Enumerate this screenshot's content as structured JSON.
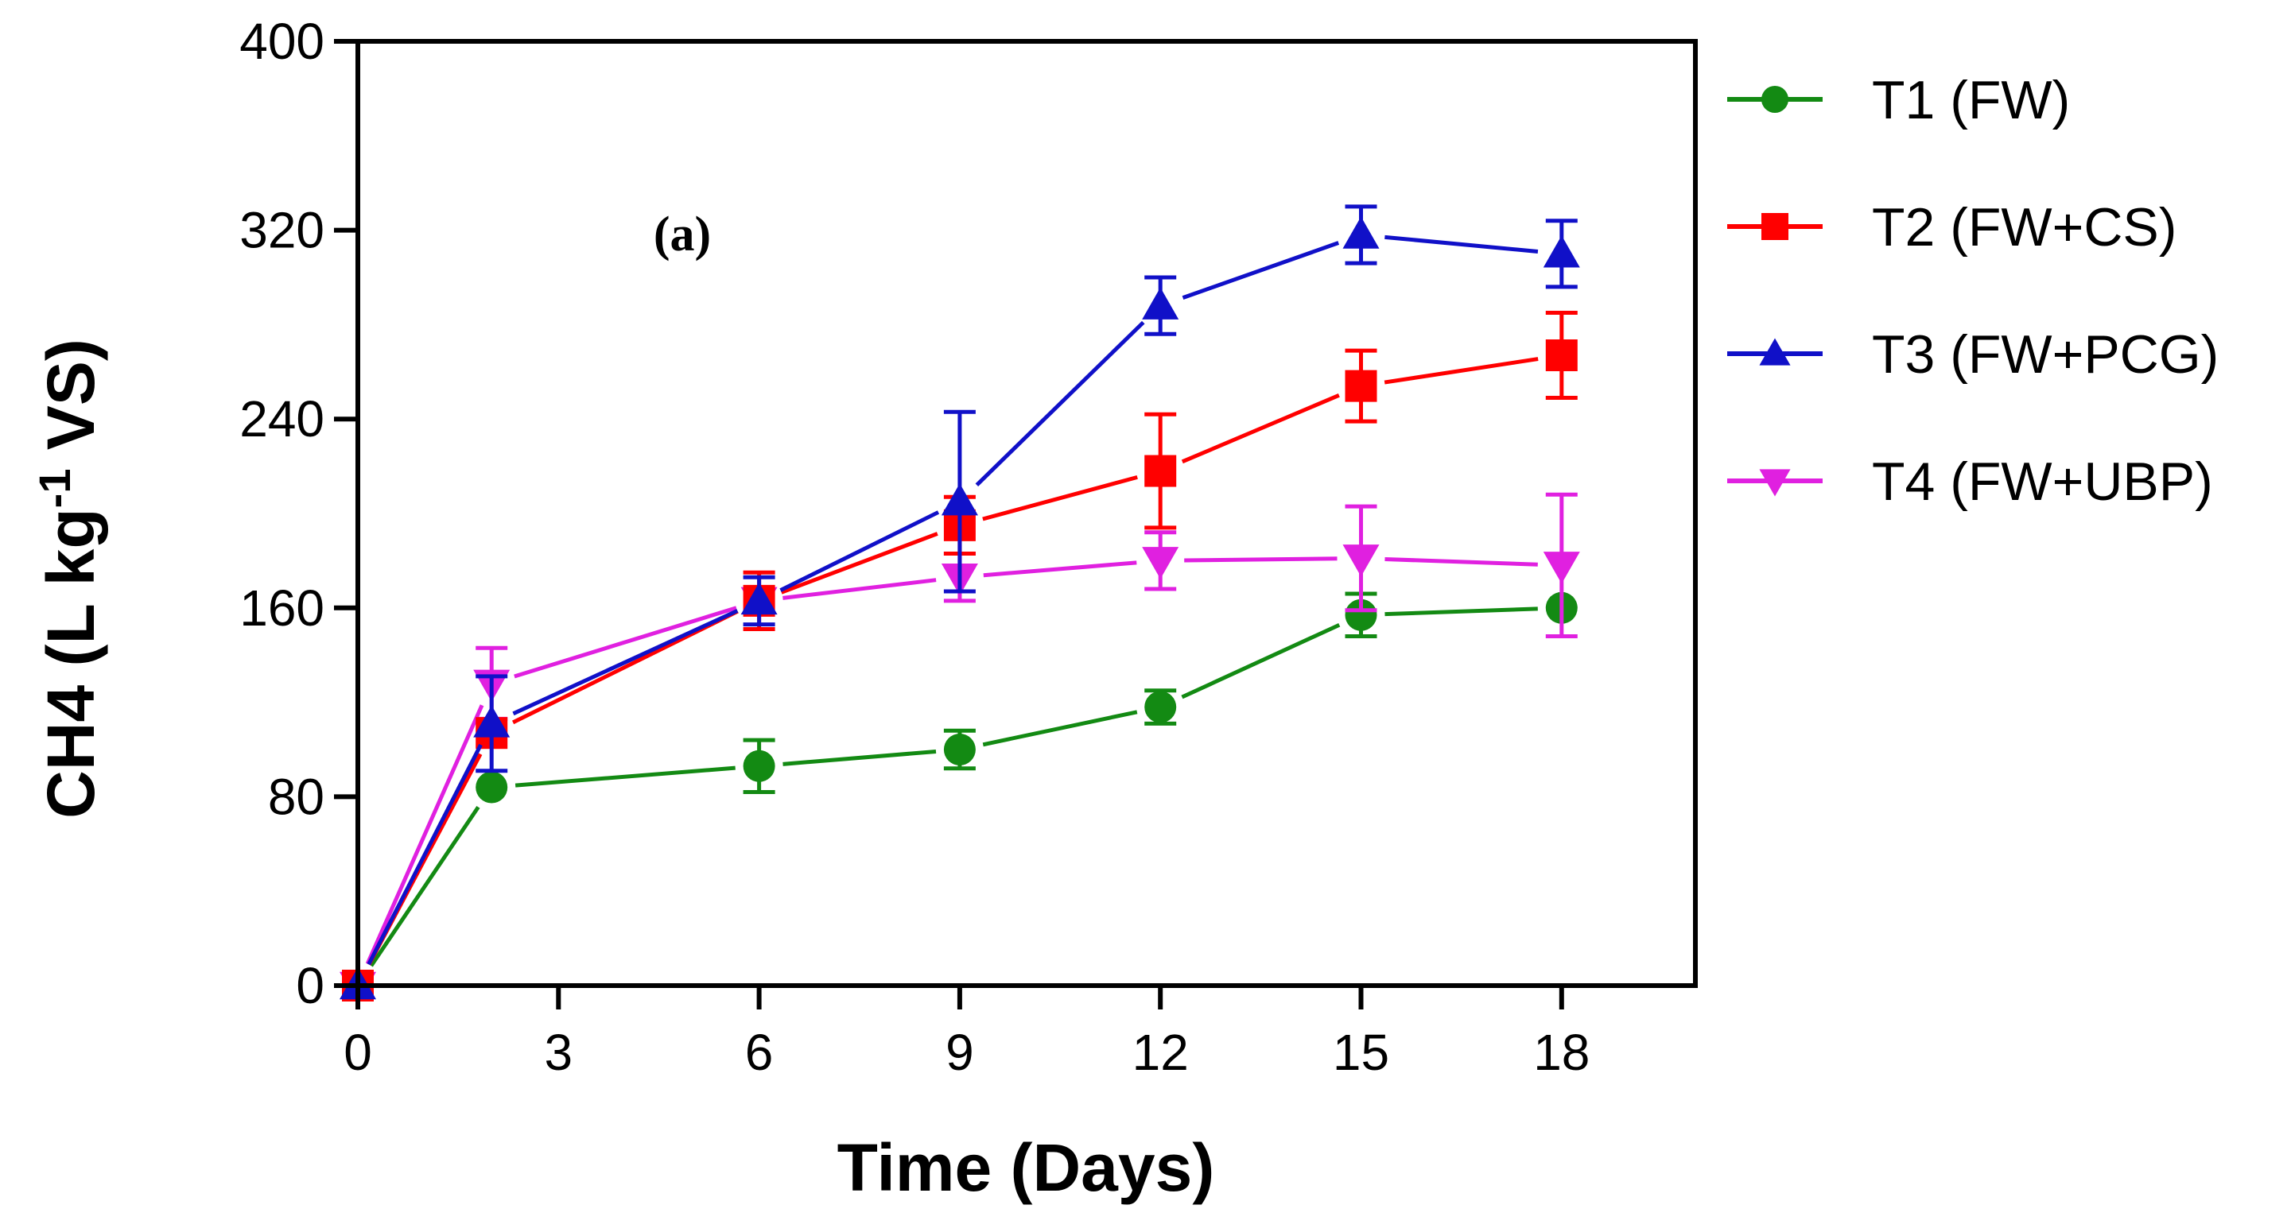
{
  "chart_data": {
    "type": "line",
    "title": "",
    "panel_label": "(a)",
    "xlabel": "Time (Days)",
    "ylabel_main": "CH4 (L kg",
    "ylabel_sup": "-1",
    "ylabel_tail": " VS)",
    "xlim": [
      0,
      20
    ],
    "ylim": [
      0,
      400
    ],
    "x_ticks": [
      0,
      3,
      6,
      9,
      12,
      15,
      18
    ],
    "x_tick_labels": [
      "0",
      "3",
      "6",
      "9",
      "12",
      "15",
      "18"
    ],
    "y_ticks": [
      0,
      80,
      160,
      240,
      320,
      400
    ],
    "y_tick_labels": [
      "0",
      "80",
      "160",
      "240",
      "320",
      "400"
    ],
    "grid": false,
    "legend_position": "right",
    "series": [
      {
        "name": "T1 (FW)",
        "color": "#138a13",
        "marker": "circle",
        "x": [
          0,
          2,
          6,
          9,
          12,
          15,
          18
        ],
        "y": [
          0,
          84,
          93,
          100,
          118,
          157,
          160
        ],
        "err": [
          0,
          0,
          11,
          8,
          7,
          9,
          0
        ]
      },
      {
        "name": "T2 (FW+CS)",
        "color": "#ff0000",
        "marker": "square",
        "x": [
          0,
          2,
          6,
          9,
          12,
          15,
          18
        ],
        "y": [
          0,
          107,
          163,
          195,
          218,
          254,
          267
        ],
        "err": [
          0,
          0,
          12,
          12,
          24,
          15,
          18
        ]
      },
      {
        "name": "T3 (FW+PCG)",
        "color": "#1010c8",
        "marker": "triangle-up",
        "x": [
          0,
          2,
          6,
          9,
          12,
          15,
          18
        ],
        "y": [
          0,
          111,
          163,
          205,
          288,
          318,
          310
        ],
        "err": [
          0,
          20,
          10,
          38,
          12,
          12,
          14
        ]
      },
      {
        "name": "T4 (FW+UBP)",
        "color": "#e020e0",
        "marker": "triangle-down",
        "x": [
          0,
          2,
          6,
          9,
          12,
          15,
          18
        ],
        "y": [
          0,
          128,
          163,
          173,
          180,
          181,
          178
        ],
        "err": [
          0,
          15,
          0,
          10,
          12,
          22,
          30
        ]
      }
    ]
  }
}
